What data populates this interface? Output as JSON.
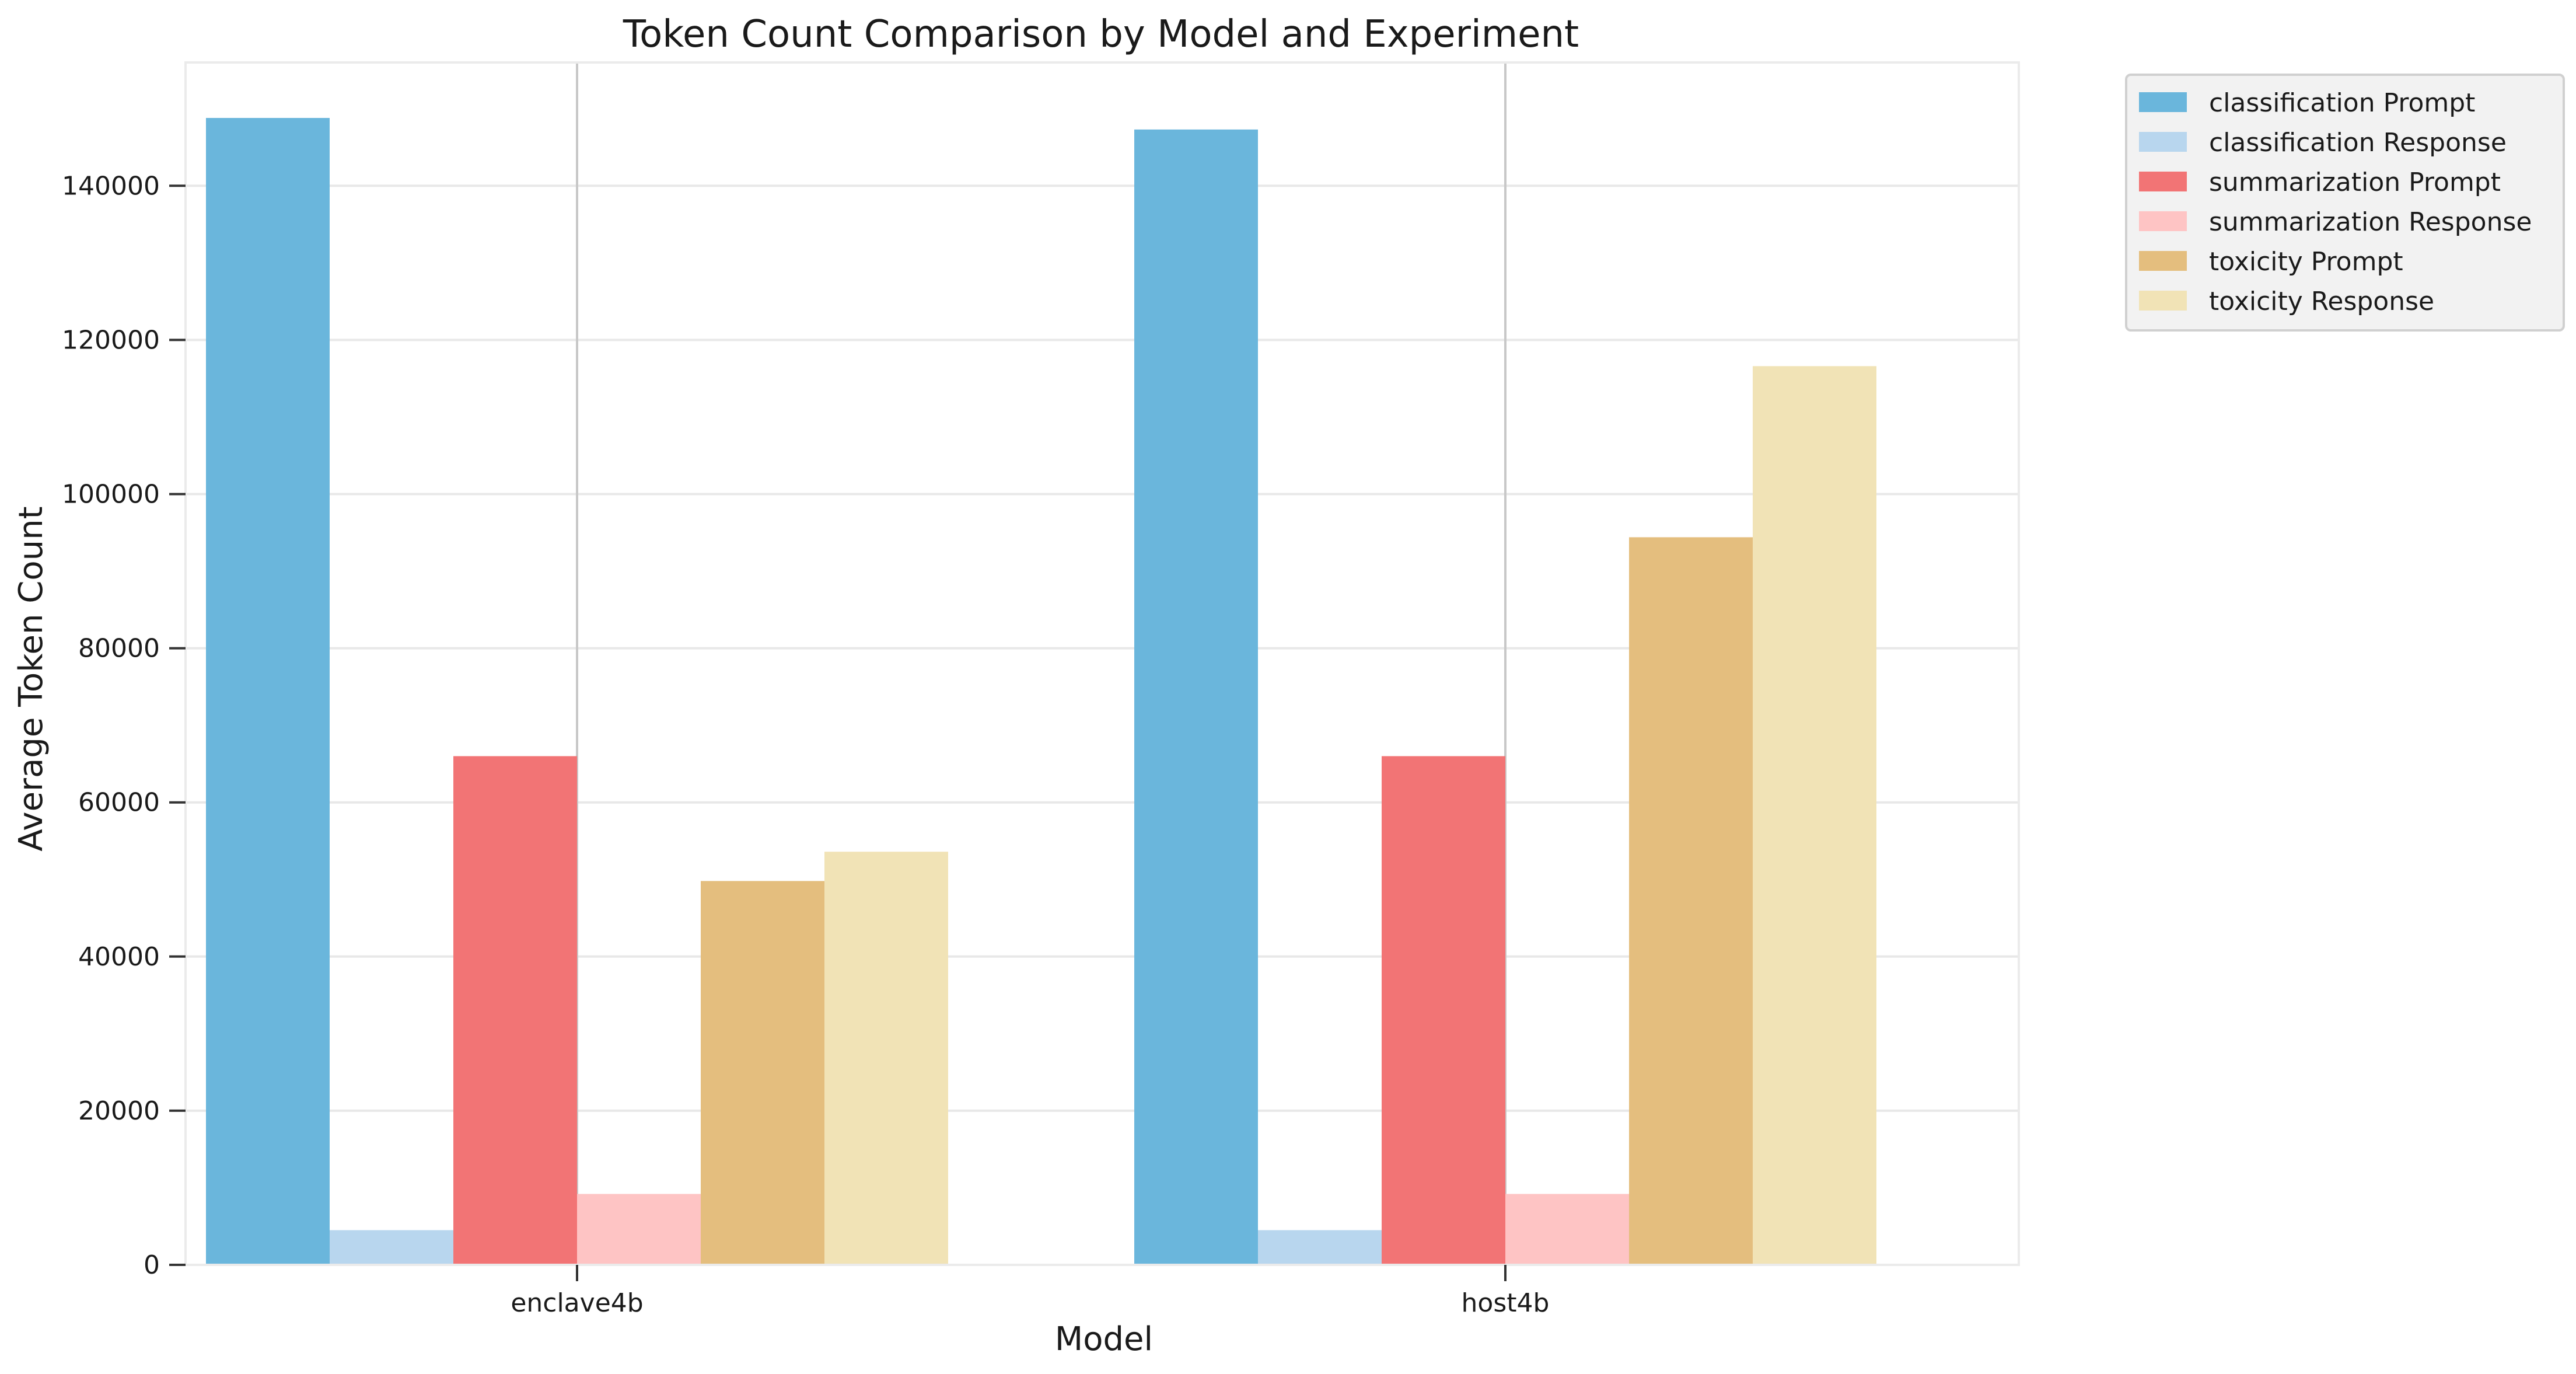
{
  "chart_data": {
    "type": "bar",
    "title": "Token Count Comparison by Model and Experiment",
    "xlabel": "Model",
    "ylabel": "Average Token Count",
    "categories": [
      "enclave4b",
      "host4b"
    ],
    "ylim": [
      0,
      156000
    ],
    "yticks": [
      0,
      20000,
      40000,
      60000,
      80000,
      100000,
      120000,
      140000
    ],
    "grid": true,
    "legend_position": "outside-top-right",
    "series": [
      {
        "name": "classification Prompt",
        "color": "#6ab6dc",
        "values": [
          148800,
          147300
        ]
      },
      {
        "name": "classification Response",
        "color": "#b8d6ee",
        "values": [
          4500,
          4500
        ]
      },
      {
        "name": "summarization Prompt",
        "color": "#f27475",
        "values": [
          66000,
          66000
        ]
      },
      {
        "name": "summarization Response",
        "color": "#fec4c4",
        "values": [
          9200,
          9200
        ]
      },
      {
        "name": "toxicity Prompt",
        "color": "#e4be7e",
        "values": [
          49800,
          94400
        ]
      },
      {
        "name": "toxicity Response",
        "color": "#f1e3b6",
        "values": [
          53600,
          116600
        ]
      }
    ]
  }
}
